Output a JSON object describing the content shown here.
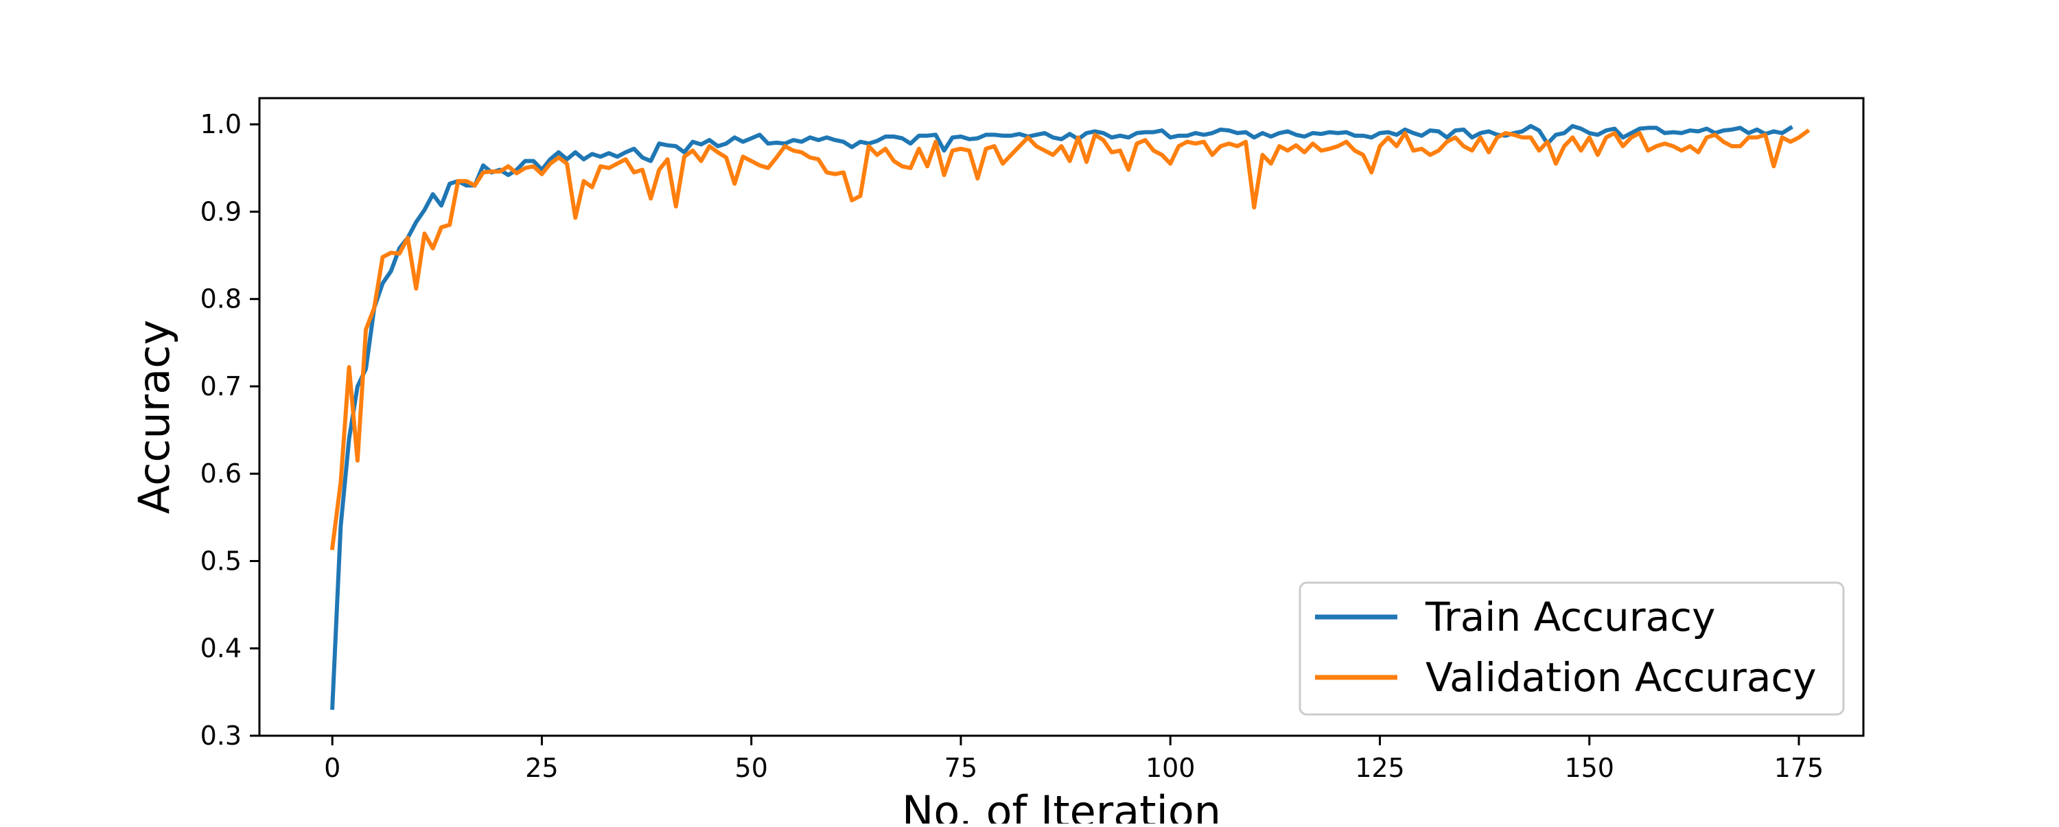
{
  "chart_data": {
    "type": "line",
    "title": "",
    "xlabel": "No. of Iteration",
    "ylabel": "Accuracy",
    "xlim": [
      -8.7,
      182.7
    ],
    "ylim": [
      0.3,
      1.03
    ],
    "xticks": [
      0,
      25,
      50,
      75,
      100,
      125,
      150,
      175
    ],
    "yticks": [
      0.3,
      0.4,
      0.5,
      0.6,
      0.7,
      0.8,
      0.9,
      1.0
    ],
    "grid": false,
    "legend_position": "lower-right",
    "series": [
      {
        "name": "Train Accuracy",
        "color": "#1f77b4",
        "values": [
          0.332,
          0.54,
          0.64,
          0.7,
          0.72,
          0.79,
          0.818,
          0.832,
          0.858,
          0.87,
          0.888,
          0.902,
          0.92,
          0.907,
          0.932,
          0.935,
          0.93,
          0.93,
          0.953,
          0.945,
          0.948,
          0.942,
          0.948,
          0.958,
          0.958,
          0.948,
          0.96,
          0.968,
          0.96,
          0.968,
          0.96,
          0.966,
          0.963,
          0.967,
          0.963,
          0.968,
          0.972,
          0.962,
          0.958,
          0.978,
          0.976,
          0.975,
          0.968,
          0.98,
          0.977,
          0.982,
          0.975,
          0.978,
          0.985,
          0.98,
          0.984,
          0.988,
          0.978,
          0.979,
          0.978,
          0.982,
          0.98,
          0.985,
          0.982,
          0.985,
          0.982,
          0.98,
          0.974,
          0.98,
          0.978,
          0.981,
          0.986,
          0.986,
          0.984,
          0.978,
          0.987,
          0.987,
          0.988,
          0.97,
          0.985,
          0.986,
          0.983,
          0.984,
          0.988,
          0.988,
          0.987,
          0.987,
          0.989,
          0.986,
          0.988,
          0.99,
          0.985,
          0.983,
          0.989,
          0.983,
          0.99,
          0.992,
          0.99,
          0.985,
          0.987,
          0.985,
          0.99,
          0.991,
          0.991,
          0.993,
          0.985,
          0.987,
          0.987,
          0.99,
          0.988,
          0.99,
          0.994,
          0.993,
          0.99,
          0.991,
          0.985,
          0.99,
          0.986,
          0.99,
          0.992,
          0.988,
          0.986,
          0.99,
          0.989,
          0.991,
          0.99,
          0.991,
          0.987,
          0.987,
          0.985,
          0.99,
          0.991,
          0.988,
          0.994,
          0.99,
          0.987,
          0.993,
          0.992,
          0.985,
          0.993,
          0.994,
          0.985,
          0.99,
          0.992,
          0.988,
          0.987,
          0.99,
          0.992,
          0.998,
          0.993,
          0.978,
          0.988,
          0.99,
          0.998,
          0.995,
          0.99,
          0.988,
          0.993,
          0.995,
          0.985,
          0.99,
          0.995,
          0.996,
          0.996,
          0.99,
          0.991,
          0.99,
          0.993,
          0.992,
          0.995,
          0.99,
          0.993,
          0.994,
          0.996,
          0.99,
          0.994,
          0.989,
          0.992,
          0.99,
          0.996
        ],
        "x_start": 0
      },
      {
        "name": "Validation Accuracy",
        "color": "#ff7f0e",
        "values": [
          0.515,
          0.59,
          0.722,
          0.615,
          0.765,
          0.79,
          0.848,
          0.853,
          0.852,
          0.87,
          0.812,
          0.875,
          0.858,
          0.882,
          0.885,
          0.935,
          0.935,
          0.93,
          0.945,
          0.946,
          0.946,
          0.952,
          0.944,
          0.95,
          0.952,
          0.943,
          0.955,
          0.962,
          0.955,
          0.893,
          0.935,
          0.928,
          0.952,
          0.95,
          0.955,
          0.96,
          0.945,
          0.948,
          0.915,
          0.948,
          0.96,
          0.906,
          0.963,
          0.97,
          0.958,
          0.975,
          0.968,
          0.962,
          0.932,
          0.963,
          0.958,
          0.953,
          0.95,
          0.962,
          0.975,
          0.97,
          0.968,
          0.962,
          0.96,
          0.945,
          0.943,
          0.945,
          0.913,
          0.918,
          0.975,
          0.965,
          0.972,
          0.958,
          0.952,
          0.95,
          0.972,
          0.952,
          0.98,
          0.942,
          0.97,
          0.972,
          0.97,
          0.938,
          0.972,
          0.975,
          0.955,
          0.965,
          0.975,
          0.985,
          0.975,
          0.97,
          0.965,
          0.975,
          0.958,
          0.985,
          0.957,
          0.988,
          0.982,
          0.968,
          0.97,
          0.948,
          0.978,
          0.982,
          0.97,
          0.965,
          0.955,
          0.975,
          0.98,
          0.978,
          0.98,
          0.965,
          0.975,
          0.978,
          0.975,
          0.98,
          0.905,
          0.965,
          0.955,
          0.975,
          0.97,
          0.976,
          0.968,
          0.978,
          0.97,
          0.972,
          0.975,
          0.98,
          0.97,
          0.965,
          0.945,
          0.975,
          0.985,
          0.975,
          0.99,
          0.97,
          0.972,
          0.965,
          0.97,
          0.98,
          0.985,
          0.975,
          0.97,
          0.985,
          0.968,
          0.985,
          0.99,
          0.988,
          0.985,
          0.985,
          0.97,
          0.98,
          0.955,
          0.975,
          0.985,
          0.97,
          0.985,
          0.965,
          0.985,
          0.99,
          0.975,
          0.985,
          0.99,
          0.97,
          0.975,
          0.978,
          0.975,
          0.97,
          0.975,
          0.968,
          0.985,
          0.988,
          0.98,
          0.975,
          0.975,
          0.985,
          0.985,
          0.988,
          0.952,
          0.985,
          0.98,
          0.985,
          0.992
        ],
        "x_start": 0
      }
    ]
  }
}
